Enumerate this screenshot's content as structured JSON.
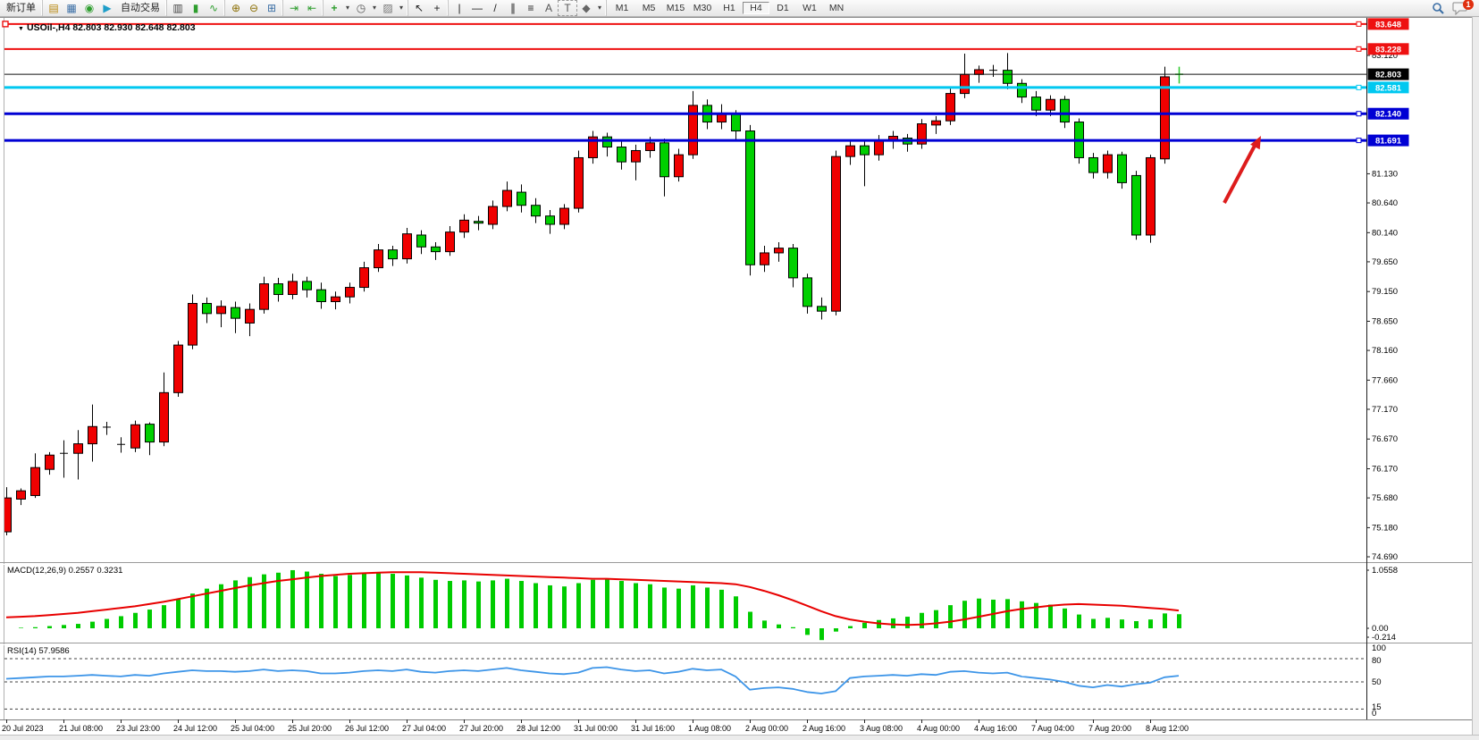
{
  "window": {
    "notification_count": "1"
  },
  "toolbar": {
    "groups": [
      {
        "items": [
          {
            "kind": "button",
            "name": "new-order-button",
            "label": "新订单"
          }
        ]
      },
      {
        "items": [
          {
            "kind": "icon",
            "name": "open-chart-icon",
            "glyph": "▤",
            "color": "#b8860b"
          },
          {
            "kind": "icon",
            "name": "profiles-icon",
            "glyph": "▦",
            "color": "#3a6ea5"
          },
          {
            "kind": "icon",
            "name": "signals-icon",
            "glyph": "◉",
            "color": "#2e9e2e"
          },
          {
            "kind": "icon",
            "name": "autotrade-icon",
            "glyph": "▶",
            "color": "#1f9ec9"
          },
          {
            "kind": "button",
            "name": "autotrade-button",
            "label": "自动交易"
          }
        ]
      },
      {
        "items": [
          {
            "kind": "icon",
            "name": "bar-chart-icon",
            "glyph": "▥",
            "color": "#444444"
          },
          {
            "kind": "icon",
            "name": "candlestick-chart-icon",
            "glyph": "▮",
            "color": "#2e9e2e"
          },
          {
            "kind": "icon",
            "name": "line-chart-icon",
            "glyph": "∿",
            "color": "#2e9e2e"
          }
        ]
      },
      {
        "items": [
          {
            "kind": "icon",
            "name": "zoom-in-icon",
            "glyph": "⊕",
            "color": "#8a6d00"
          },
          {
            "kind": "icon",
            "name": "zoom-out-icon",
            "glyph": "⊖",
            "color": "#8a6d00"
          },
          {
            "kind": "icon",
            "name": "tile-windows-icon",
            "glyph": "⊞",
            "color": "#3a6ea5"
          }
        ]
      },
      {
        "items": [
          {
            "kind": "icon",
            "name": "auto-scroll-icon",
            "glyph": "⇥",
            "color": "#2e9e2e"
          },
          {
            "kind": "icon",
            "name": "chart-shift-icon",
            "glyph": "⇤",
            "color": "#2e9e2e"
          }
        ]
      },
      {
        "items": [
          {
            "kind": "icon",
            "name": "indicators-icon",
            "glyph": "+",
            "color": "#2e9e2e"
          },
          {
            "kind": "caret",
            "name": "indicators-caret",
            "glyph": "▾"
          },
          {
            "kind": "icon",
            "name": "periods-icon",
            "glyph": "◷",
            "color": "#555555"
          },
          {
            "kind": "caret",
            "name": "periods-caret",
            "glyph": "▾"
          },
          {
            "kind": "icon",
            "name": "templates-icon",
            "glyph": "▨",
            "color": "#777777"
          },
          {
            "kind": "caret",
            "name": "templates-caret",
            "glyph": "▾"
          }
        ]
      },
      {
        "items": [
          {
            "kind": "icon",
            "name": "cursor-icon",
            "glyph": "↖",
            "color": "#222222"
          },
          {
            "kind": "icon",
            "name": "crosshair-icon",
            "glyph": "+",
            "color": "#222222"
          }
        ]
      },
      {
        "items": [
          {
            "kind": "icon",
            "name": "vertical-line-icon",
            "glyph": "|",
            "color": "#222222"
          },
          {
            "kind": "icon",
            "name": "horizontal-line-icon",
            "glyph": "—",
            "color": "#222222"
          },
          {
            "kind": "icon",
            "name": "trendline-icon",
            "glyph": "/",
            "color": "#222222"
          },
          {
            "kind": "icon",
            "name": "channel-icon",
            "glyph": "∥",
            "color": "#222222"
          },
          {
            "kind": "icon",
            "name": "fibonacci-icon",
            "glyph": "≡",
            "color": "#222222"
          },
          {
            "kind": "icon",
            "name": "text-icon",
            "glyph": "A",
            "color": "#555555"
          },
          {
            "kind": "icon",
            "name": "label-icon",
            "glyph": "T",
            "color": "#555555"
          },
          {
            "kind": "icon",
            "name": "arrows-icon",
            "glyph": "◆",
            "color": "#666666"
          },
          {
            "kind": "caret",
            "name": "arrows-caret",
            "glyph": "▾"
          }
        ]
      },
      {
        "items": [
          {
            "kind": "tf",
            "name": "timeframe-m1",
            "label": "M1"
          },
          {
            "kind": "tf",
            "name": "timeframe-m5",
            "label": "M5"
          },
          {
            "kind": "tf",
            "name": "timeframe-m15",
            "label": "M15"
          },
          {
            "kind": "tf",
            "name": "timeframe-m30",
            "label": "M30"
          },
          {
            "kind": "tf",
            "name": "timeframe-h1",
            "label": "H1"
          },
          {
            "kind": "tf",
            "name": "timeframe-h4",
            "label": "H4",
            "active": true
          },
          {
            "kind": "tf",
            "name": "timeframe-d1",
            "label": "D1"
          },
          {
            "kind": "tf",
            "name": "timeframe-w1",
            "label": "W1"
          },
          {
            "kind": "tf",
            "name": "timeframe-mn",
            "label": "MN"
          }
        ]
      }
    ]
  },
  "chart": {
    "title": "USOil-,H4  82.803 82.930 82.648 82.803",
    "colors": {
      "up": "#f00000",
      "down": "#00d000",
      "wick": "#000000",
      "macd_bar": "#00cc00",
      "macd_signal": "#e80000",
      "rsi_line": "#3d95e8",
      "arrow": "#dd1c1c",
      "forming": "#28c828"
    }
  },
  "chart_data": {
    "type": "candlestick",
    "symbol_period": "USOil-,H4",
    "ohlc_current": {
      "open": "82.803",
      "high": "82.930",
      "low": "82.648",
      "close": "82.803"
    },
    "x_labels": [
      "20 Jul 2023",
      "21 Jul 08:00",
      "23 Jul 23:00",
      "24 Jul 12:00",
      "25 Jul 04:00",
      "25 Jul 20:00",
      "26 Jul 12:00",
      "27 Jul 04:00",
      "27 Jul 20:00",
      "28 Jul 12:00",
      "31 Jul 00:00",
      "31 Jul 16:00",
      "1 Aug 08:00",
      "2 Aug 00:00",
      "2 Aug 16:00",
      "3 Aug 08:00",
      "4 Aug 00:00",
      "4 Aug 16:00",
      "7 Aug 04:00",
      "7 Aug 20:00",
      "8 Aug 12:00"
    ],
    "y_ticks": [
      "83.120",
      "81.130",
      "80.640",
      "80.140",
      "79.650",
      "79.150",
      "78.650",
      "78.160",
      "77.660",
      "77.170",
      "76.670",
      "76.170",
      "75.680",
      "75.180",
      "74.690"
    ],
    "hlines": [
      {
        "label": "83.648",
        "price": 83.648,
        "color": "#ee1111",
        "width": 2,
        "handles": true,
        "left_handle": true
      },
      {
        "label": "83.228",
        "price": 83.228,
        "color": "#ee1111",
        "width": 2,
        "handles": true,
        "left_handle": false
      },
      {
        "label": "82.803",
        "price": 82.803,
        "color": "#111111",
        "width": 1,
        "handles": false,
        "left_handle": false,
        "bid": true
      },
      {
        "label": "82.581",
        "price": 82.581,
        "color": "#00c8f0",
        "width": 3,
        "handles": true,
        "left_handle": false
      },
      {
        "label": "82.140",
        "price": 82.14,
        "color": "#0000d4",
        "width": 3,
        "handles": true,
        "left_handle": false
      },
      {
        "label": "81.691",
        "price": 81.691,
        "color": "#0000d4",
        "width": 3,
        "handles": true,
        "left_handle": false
      }
    ],
    "candles": [
      [
        75.11,
        75.86,
        75.05,
        75.68
      ],
      [
        75.66,
        75.84,
        75.56,
        75.8
      ],
      [
        75.72,
        76.43,
        75.68,
        76.19
      ],
      [
        76.16,
        76.45,
        76.07,
        76.4
      ],
      [
        76.41,
        76.65,
        76.02,
        76.43
      ],
      [
        76.43,
        76.82,
        75.99,
        76.59
      ],
      [
        76.59,
        77.25,
        76.29,
        76.88
      ],
      [
        76.85,
        76.96,
        76.74,
        76.87
      ],
      [
        76.56,
        76.7,
        76.44,
        76.58
      ],
      [
        76.52,
        76.98,
        76.45,
        76.91
      ],
      [
        76.92,
        76.95,
        76.4,
        76.62
      ],
      [
        76.62,
        77.79,
        76.55,
        77.45
      ],
      [
        77.45,
        78.32,
        77.38,
        78.25
      ],
      [
        78.25,
        79.1,
        78.18,
        78.95
      ],
      [
        78.95,
        79.05,
        78.62,
        78.78
      ],
      [
        78.78,
        79.0,
        78.55,
        78.9
      ],
      [
        78.88,
        78.98,
        78.45,
        78.7
      ],
      [
        78.62,
        78.95,
        78.4,
        78.85
      ],
      [
        78.85,
        79.4,
        78.78,
        79.28
      ],
      [
        79.28,
        79.38,
        78.98,
        79.1
      ],
      [
        79.1,
        79.45,
        79.02,
        79.32
      ],
      [
        79.32,
        79.4,
        79.05,
        79.18
      ],
      [
        79.18,
        79.3,
        78.86,
        78.98
      ],
      [
        78.98,
        79.15,
        78.85,
        79.06
      ],
      [
        79.06,
        79.3,
        78.95,
        79.22
      ],
      [
        79.22,
        79.65,
        79.15,
        79.55
      ],
      [
        79.55,
        79.95,
        79.48,
        79.85
      ],
      [
        79.85,
        79.92,
        79.58,
        79.7
      ],
      [
        79.7,
        80.22,
        79.62,
        80.12
      ],
      [
        80.1,
        80.18,
        79.78,
        79.9
      ],
      [
        79.9,
        79.98,
        79.68,
        79.82
      ],
      [
        79.82,
        80.25,
        79.75,
        80.15
      ],
      [
        80.15,
        80.45,
        80.05,
        80.35
      ],
      [
        80.33,
        80.42,
        80.18,
        80.3
      ],
      [
        80.28,
        80.68,
        80.2,
        80.58
      ],
      [
        80.58,
        81.0,
        80.5,
        80.85
      ],
      [
        80.82,
        80.95,
        80.48,
        80.6
      ],
      [
        80.6,
        80.72,
        80.3,
        80.42
      ],
      [
        80.42,
        80.52,
        80.12,
        80.28
      ],
      [
        80.28,
        80.62,
        80.2,
        80.55
      ],
      [
        80.55,
        81.52,
        80.48,
        81.4
      ],
      [
        81.4,
        81.85,
        81.3,
        81.75
      ],
      [
        81.75,
        81.82,
        81.42,
        81.58
      ],
      [
        81.58,
        81.68,
        81.2,
        81.33
      ],
      [
        81.33,
        81.62,
        81.02,
        81.52
      ],
      [
        81.52,
        81.75,
        81.4,
        81.65
      ],
      [
        81.65,
        81.72,
        80.75,
        81.08
      ],
      [
        81.08,
        81.55,
        81.0,
        81.45
      ],
      [
        81.45,
        82.52,
        81.38,
        82.28
      ],
      [
        82.28,
        82.38,
        81.88,
        82.0
      ],
      [
        82.0,
        82.3,
        81.88,
        82.15
      ],
      [
        82.15,
        82.2,
        81.68,
        81.85
      ],
      [
        81.85,
        81.95,
        79.42,
        79.6
      ],
      [
        79.6,
        79.92,
        79.48,
        79.8
      ],
      [
        79.8,
        79.98,
        79.65,
        79.88
      ],
      [
        79.88,
        79.95,
        79.22,
        79.38
      ],
      [
        79.38,
        79.45,
        78.78,
        78.9
      ],
      [
        78.9,
        79.05,
        78.68,
        78.82
      ],
      [
        78.82,
        81.52,
        78.75,
        81.42
      ],
      [
        81.42,
        81.7,
        81.28,
        81.6
      ],
      [
        81.6,
        81.68,
        80.92,
        81.45
      ],
      [
        81.45,
        81.78,
        81.35,
        81.68
      ],
      [
        81.68,
        81.85,
        81.55,
        81.76
      ],
      [
        81.73,
        81.8,
        81.5,
        81.63
      ],
      [
        81.63,
        82.05,
        81.55,
        81.97
      ],
      [
        81.95,
        82.1,
        81.8,
        82.02
      ],
      [
        82.02,
        82.58,
        81.95,
        82.48
      ],
      [
        82.48,
        83.15,
        82.4,
        82.8
      ],
      [
        82.8,
        82.95,
        82.66,
        82.88
      ],
      [
        82.86,
        82.96,
        82.76,
        82.87
      ],
      [
        82.87,
        83.16,
        82.55,
        82.65
      ],
      [
        82.65,
        82.72,
        82.32,
        82.42
      ],
      [
        82.42,
        82.52,
        82.1,
        82.2
      ],
      [
        82.2,
        82.45,
        82.1,
        82.38
      ],
      [
        82.38,
        82.44,
        81.9,
        82.0
      ],
      [
        82.0,
        82.06,
        81.3,
        81.4
      ],
      [
        81.4,
        81.48,
        81.05,
        81.15
      ],
      [
        81.15,
        81.52,
        81.05,
        81.45
      ],
      [
        81.45,
        81.5,
        80.88,
        80.98
      ],
      [
        81.1,
        81.18,
        80.02,
        80.1
      ],
      [
        80.1,
        81.45,
        79.97,
        81.4
      ],
      [
        81.38,
        82.93,
        81.3,
        82.76
      ],
      [
        82.803,
        82.93,
        82.648,
        82.803
      ]
    ],
    "macd": {
      "label": "MACD(12,26,9) 0.2557 0.3231",
      "scale": [
        "1.0558",
        "0.00",
        "-0.214"
      ],
      "hist": [
        0.0,
        0.01,
        0.02,
        0.04,
        0.06,
        0.08,
        0.12,
        0.17,
        0.22,
        0.28,
        0.34,
        0.42,
        0.52,
        0.63,
        0.72,
        0.8,
        0.87,
        0.93,
        0.98,
        1.01,
        1.0558,
        1.03,
        0.99,
        0.95,
        0.97,
        1.0,
        1.02,
        0.99,
        0.96,
        0.92,
        0.88,
        0.86,
        0.87,
        0.85,
        0.87,
        0.9,
        0.86,
        0.82,
        0.78,
        0.76,
        0.82,
        0.88,
        0.9,
        0.86,
        0.82,
        0.8,
        0.74,
        0.72,
        0.78,
        0.74,
        0.7,
        0.58,
        0.3,
        0.14,
        0.07,
        0.02,
        -0.12,
        -0.214,
        -0.06,
        0.04,
        0.1,
        0.15,
        0.18,
        0.21,
        0.28,
        0.33,
        0.42,
        0.5,
        0.54,
        0.52,
        0.53,
        0.49,
        0.46,
        0.43,
        0.36,
        0.25,
        0.17,
        0.19,
        0.16,
        0.13,
        0.16,
        0.27,
        0.2557
      ],
      "signal": [
        0.2,
        0.21,
        0.22,
        0.24,
        0.26,
        0.28,
        0.31,
        0.34,
        0.37,
        0.4,
        0.44,
        0.48,
        0.53,
        0.58,
        0.63,
        0.68,
        0.73,
        0.78,
        0.82,
        0.86,
        0.89,
        0.92,
        0.95,
        0.97,
        0.99,
        1.0,
        1.01,
        1.02,
        1.02,
        1.02,
        1.01,
        1.0,
        0.99,
        0.98,
        0.97,
        0.96,
        0.95,
        0.94,
        0.93,
        0.92,
        0.91,
        0.9,
        0.9,
        0.89,
        0.88,
        0.87,
        0.86,
        0.85,
        0.84,
        0.83,
        0.82,
        0.8,
        0.75,
        0.68,
        0.6,
        0.51,
        0.41,
        0.31,
        0.22,
        0.16,
        0.12,
        0.09,
        0.07,
        0.06,
        0.07,
        0.09,
        0.12,
        0.16,
        0.21,
        0.26,
        0.31,
        0.35,
        0.38,
        0.41,
        0.43,
        0.44,
        0.43,
        0.42,
        0.41,
        0.39,
        0.37,
        0.35,
        0.3231
      ]
    },
    "rsi": {
      "label": "RSI(14) 57.9586",
      "scale": [
        "100",
        "80",
        "50",
        "15",
        "0"
      ],
      "levels": [
        80,
        50,
        15
      ],
      "values": [
        54,
        55,
        56,
        57,
        57,
        58,
        59,
        58,
        57,
        59,
        58,
        61,
        63,
        65,
        64,
        64,
        63,
        64,
        66,
        64,
        65,
        64,
        61,
        61,
        62,
        64,
        65,
        64,
        66,
        63,
        62,
        64,
        65,
        64,
        66,
        68,
        65,
        63,
        61,
        60,
        62,
        68,
        69,
        66,
        64,
        65,
        61,
        63,
        67,
        65,
        66,
        57,
        40,
        42,
        43,
        41,
        37,
        35,
        38,
        55,
        57,
        58,
        59,
        58,
        60,
        59,
        63,
        64,
        62,
        61,
        62,
        57,
        55,
        53,
        50,
        45,
        43,
        46,
        44,
        47,
        49,
        56,
        57.96
      ]
    }
  }
}
